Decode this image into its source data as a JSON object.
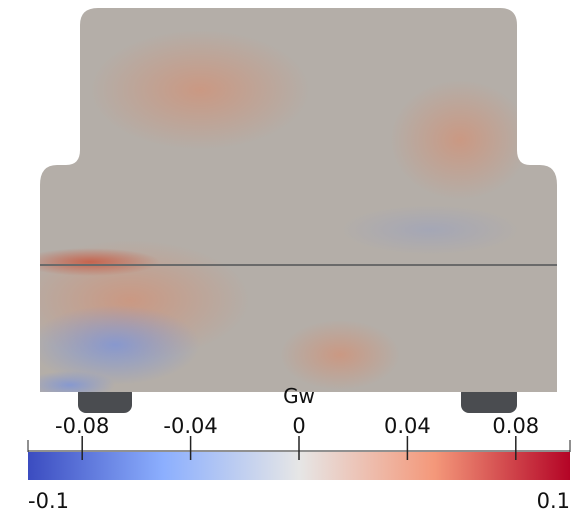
{
  "colorbar": {
    "title": "Gw",
    "range": [
      -0.1,
      0.1
    ],
    "ticks": [
      -0.08,
      -0.04,
      0,
      0.04,
      0.08
    ]
  }
}
